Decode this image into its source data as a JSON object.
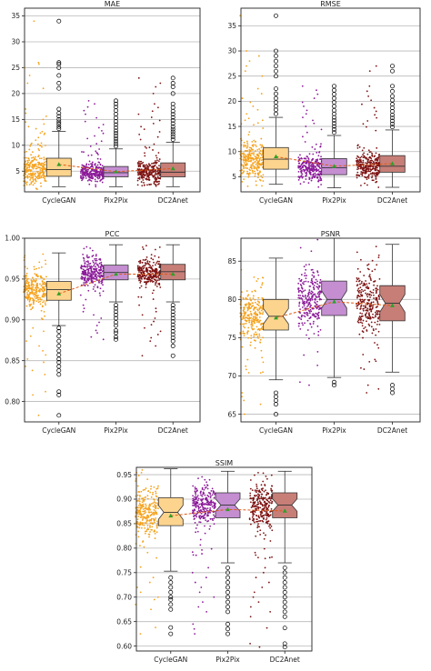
{
  "chart_data": [
    {
      "type": "box",
      "title": "MAE",
      "categories": [
        "CycleGAN",
        "Pix2Pix",
        "DC2Anet"
      ],
      "yticks": [
        5,
        10,
        15,
        20,
        25,
        30,
        35
      ],
      "ylim": [
        1,
        36.5
      ],
      "grid": "horizontal",
      "notched": false,
      "boxes": [
        {
          "name": "CycleGAN",
          "q1": 4.0,
          "median": 5.3,
          "q3": 7.5,
          "whisker_low": 2.0,
          "whisker_high": 12.7,
          "mean": 6.3,
          "fliers": [
            13.2,
            13.6,
            14.1,
            14.5,
            15.0,
            15.6,
            16.2,
            17.0,
            21.0,
            22.0,
            23.5,
            25.0,
            25.7,
            26.0,
            34.0
          ]
        },
        {
          "name": "Pix2Pix",
          "q1": 3.9,
          "median": 4.7,
          "q3": 5.9,
          "whisker_low": 2.0,
          "whisker_high": 9.3,
          "mean": 4.9,
          "fliers": [
            9.8,
            10.3,
            10.8,
            11.3,
            11.8,
            12.3,
            12.8,
            13.4,
            14.0,
            14.6,
            15.3,
            16.0,
            16.7,
            17.4,
            18.0,
            18.6
          ]
        },
        {
          "name": "DC2Anet",
          "q1": 3.9,
          "median": 4.8,
          "q3": 6.6,
          "whisker_low": 2.0,
          "whisker_high": 10.6,
          "mean": 5.5,
          "fliers": [
            11.1,
            11.6,
            12.1,
            12.6,
            13.1,
            13.6,
            14.2,
            14.8,
            15.4,
            16.0,
            16.6,
            17.3,
            18.0,
            20.0,
            21.3,
            22.0,
            23.0
          ]
        }
      ]
    },
    {
      "type": "box",
      "title": "RMSE",
      "categories": [
        "CycleGAN",
        "Pix2Pix",
        "DC2Anet"
      ],
      "yticks": [
        5,
        10,
        15,
        20,
        25,
        30,
        35
      ],
      "ylim": [
        2,
        38.5
      ],
      "grid": "horizontal",
      "notched": false,
      "boxes": [
        {
          "name": "CycleGAN",
          "q1": 6.5,
          "median": 8.5,
          "q3": 10.8,
          "whisker_low": 3.5,
          "whisker_high": 16.8,
          "mean": 9.0,
          "fliers": [
            17.5,
            18.3,
            19.0,
            19.8,
            20.6,
            21.5,
            22.5,
            25.0,
            26.0,
            27.0,
            28.0,
            29.0,
            30.0,
            37.0
          ]
        },
        {
          "name": "Pix2Pix",
          "q1": 5.4,
          "median": 6.8,
          "q3": 8.6,
          "whisker_low": 2.8,
          "whisker_high": 13.2,
          "mean": 7.1,
          "fliers": [
            13.8,
            14.4,
            15.0,
            15.6,
            16.2,
            16.8,
            17.5,
            18.2,
            19.0,
            19.8,
            20.6,
            21.4,
            22.2,
            23.0
          ]
        },
        {
          "name": "DC2Anet",
          "q1": 5.9,
          "median": 7.1,
          "q3": 9.2,
          "whisker_low": 2.9,
          "whisker_high": 14.3,
          "mean": 7.6,
          "fliers": [
            14.9,
            15.5,
            16.1,
            16.7,
            17.3,
            18.0,
            18.7,
            19.4,
            20.2,
            21.0,
            22.0,
            23.0,
            26.0,
            27.0
          ]
        }
      ]
    },
    {
      "type": "box",
      "title": "PCC",
      "categories": [
        "CycleGAN",
        "Pix2Pix",
        "DC2Anet"
      ],
      "yticks": [
        0.8,
        0.85,
        0.9,
        0.95,
        1.0
      ],
      "ytick_labels": [
        "0.80",
        "0.85",
        "0.90",
        "0.95",
        "1.00"
      ],
      "ylim": [
        0.775,
        1.0
      ],
      "grid": "horizontal",
      "notched": false,
      "boxes": [
        {
          "name": "CycleGAN",
          "q1": 0.924,
          "median": 0.937,
          "q3": 0.947,
          "whisker_low": 0.893,
          "whisker_high": 0.982,
          "mean": 0.932,
          "fliers": [
            0.89,
            0.886,
            0.88,
            0.874,
            0.868,
            0.862,
            0.857,
            0.852,
            0.848,
            0.843,
            0.838,
            0.833,
            0.812,
            0.808,
            0.783
          ]
        },
        {
          "name": "Pix2Pix",
          "q1": 0.949,
          "median": 0.958,
          "q3": 0.967,
          "whisker_low": 0.922,
          "whisker_high": 0.992,
          "mean": 0.956,
          "fliers": [
            0.918,
            0.914,
            0.91,
            0.906,
            0.902,
            0.897,
            0.893,
            0.887,
            0.884,
            0.879,
            0.876
          ]
        },
        {
          "name": "DC2Anet",
          "q1": 0.949,
          "median": 0.959,
          "q3": 0.968,
          "whisker_low": 0.922,
          "whisker_high": 0.992,
          "mean": 0.956,
          "fliers": [
            0.918,
            0.914,
            0.91,
            0.906,
            0.902,
            0.898,
            0.894,
            0.89,
            0.886,
            0.882,
            0.878,
            0.874,
            0.868,
            0.856
          ]
        }
      ]
    },
    {
      "type": "box",
      "title": "PSNR",
      "categories": [
        "CycleGAN",
        "Pix2Pix",
        "DC2Anet"
      ],
      "yticks": [
        65,
        70,
        75,
        80,
        85
      ],
      "ylim": [
        64,
        88
      ],
      "grid": "horizontal",
      "notched": true,
      "boxes": [
        {
          "name": "CycleGAN",
          "q1": 76.0,
          "median": 77.8,
          "q3": 80.0,
          "whisker_low": 69.5,
          "whisker_high": 85.4,
          "mean": 77.6,
          "fliers": [
            67.8,
            67.3,
            66.8,
            66.3,
            65.0
          ]
        },
        {
          "name": "Pix2Pix",
          "q1": 77.9,
          "median": 80.0,
          "q3": 82.4,
          "whisker_low": 69.8,
          "whisker_high": 88.0,
          "mean": 79.7,
          "fliers": [
            69.2,
            68.8
          ]
        },
        {
          "name": "DC2Anet",
          "q1": 77.2,
          "median": 79.5,
          "q3": 81.8,
          "whisker_low": 70.5,
          "whisker_high": 87.2,
          "mean": 79.2,
          "fliers": [
            68.8,
            68.3,
            67.8
          ]
        }
      ]
    },
    {
      "type": "box",
      "title": "SSIM",
      "categories": [
        "CycleGAN",
        "Pix2Pix",
        "DC2Anet"
      ],
      "yticks": [
        0.6,
        0.65,
        0.7,
        0.75,
        0.8,
        0.85,
        0.9,
        0.95
      ],
      "ytick_labels": [
        "0.60",
        "0.65",
        "0.70",
        "0.75",
        "0.80",
        "0.85",
        "0.90",
        "0.95"
      ],
      "ylim": [
        0.59,
        0.965
      ],
      "grid": "horizontal",
      "notched": true,
      "boxes": [
        {
          "name": "CycleGAN",
          "q1": 0.846,
          "median": 0.873,
          "q3": 0.903,
          "whisker_low": 0.753,
          "whisker_high": 0.962,
          "mean": 0.866,
          "fliers": [
            0.74,
            0.73,
            0.72,
            0.71,
            0.7,
            0.695,
            0.685,
            0.675,
            0.638,
            0.625
          ]
        },
        {
          "name": "Pix2Pix",
          "q1": 0.862,
          "median": 0.888,
          "q3": 0.913,
          "whisker_low": 0.77,
          "whisker_high": 0.957,
          "mean": 0.879,
          "fliers": [
            0.76,
            0.75,
            0.74,
            0.73,
            0.72,
            0.71,
            0.7,
            0.69,
            0.68,
            0.67,
            0.645,
            0.635,
            0.625
          ]
        },
        {
          "name": "DC2Anet",
          "q1": 0.862,
          "median": 0.888,
          "q3": 0.913,
          "whisker_low": 0.77,
          "whisker_high": 0.957,
          "mean": 0.876,
          "fliers": [
            0.76,
            0.75,
            0.74,
            0.73,
            0.72,
            0.71,
            0.7,
            0.69,
            0.68,
            0.67,
            0.66,
            0.637,
            0.605,
            0.598
          ]
        }
      ]
    }
  ],
  "colors": {
    "point_colors": [
      "#f5a21c",
      "#8b1a99",
      "#7e1212"
    ],
    "box_fills": [
      "#fdd48e",
      "#c48ed1",
      "#c77e77"
    ],
    "box_edge": "#333333",
    "mean_marker": "#2ca02c",
    "mean_line": "#e05a10",
    "grid": "#b8b8b8",
    "flier_edge": "#000000"
  }
}
